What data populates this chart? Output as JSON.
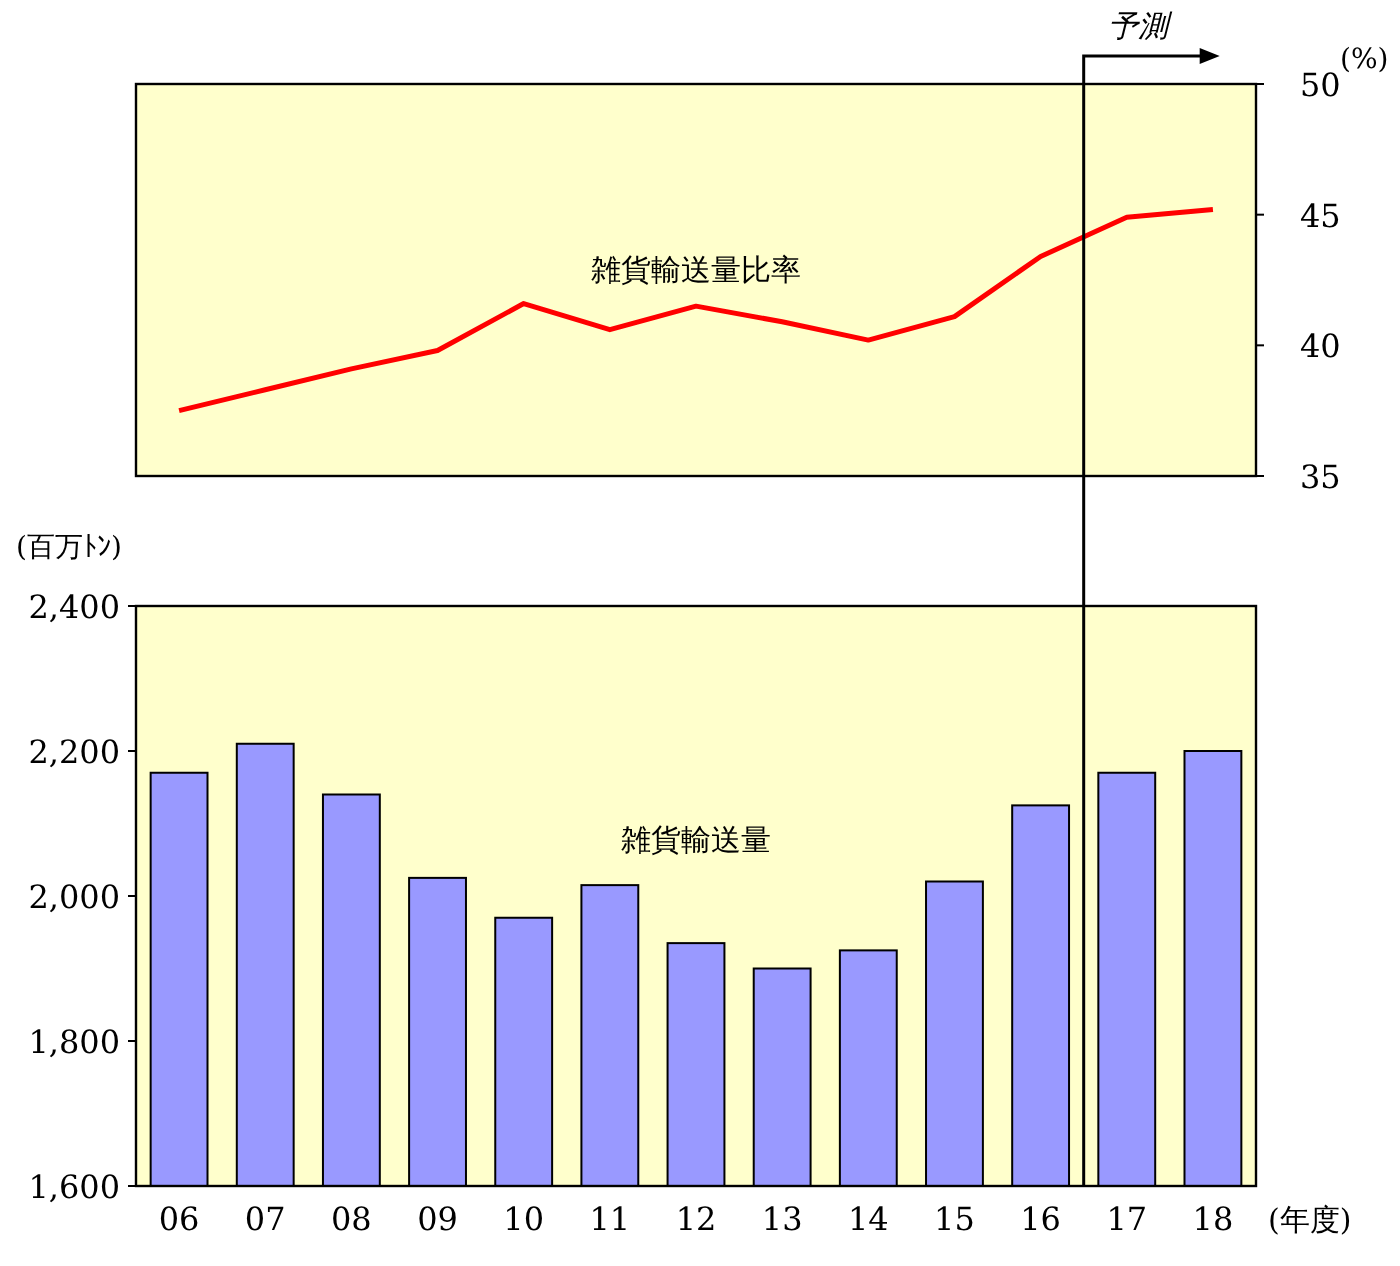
{
  "chart_data": [
    {
      "type": "line",
      "categories": [
        null,
        null,
        null,
        null,
        null,
        null,
        null,
        null,
        null,
        null,
        null,
        null,
        null
      ],
      "series": [
        {
          "name": "雑貨輸送量比率",
          "color": "#ff0000",
          "values": [
            37.5,
            38.3,
            39.1,
            39.8,
            41.6,
            40.6,
            41.5,
            40.9,
            40.2,
            41.1,
            43.4,
            44.9,
            45.2
          ]
        }
      ],
      "ylabel": "(%)",
      "ylim": [
        35,
        50
      ],
      "yticks": [
        35,
        40,
        45,
        50
      ],
      "tick_labels": "y",
      "grid": false,
      "marker": "none",
      "line_style": "solid",
      "annotations": [
        "予測"
      ]
    },
    {
      "type": "bar",
      "categories": [
        "06",
        "07",
        "08",
        "09",
        "10",
        "11",
        "12",
        "13",
        "14",
        "15",
        "16",
        "17",
        "18"
      ],
      "series": [
        {
          "name": "雑貨輸送量",
          "color": "#9999ff",
          "values": [
            2170,
            2210,
            2140,
            2025,
            1970,
            2015,
            1935,
            1900,
            1925,
            2020,
            2125,
            2170,
            2200
          ]
        }
      ],
      "ylabel": "(百万ﾄﾝ)",
      "xlabel": "(年度)",
      "ylim": [
        1600,
        2400
      ],
      "yticks": [
        {
          "value": 1600,
          "label": "1,600"
        },
        {
          "value": 1800,
          "label": "1,800"
        },
        {
          "value": 2000,
          "label": "2,000"
        },
        {
          "value": 2200,
          "label": "2,200"
        },
        {
          "value": 2400,
          "label": "2,400"
        }
      ],
      "grid": false
    }
  ]
}
